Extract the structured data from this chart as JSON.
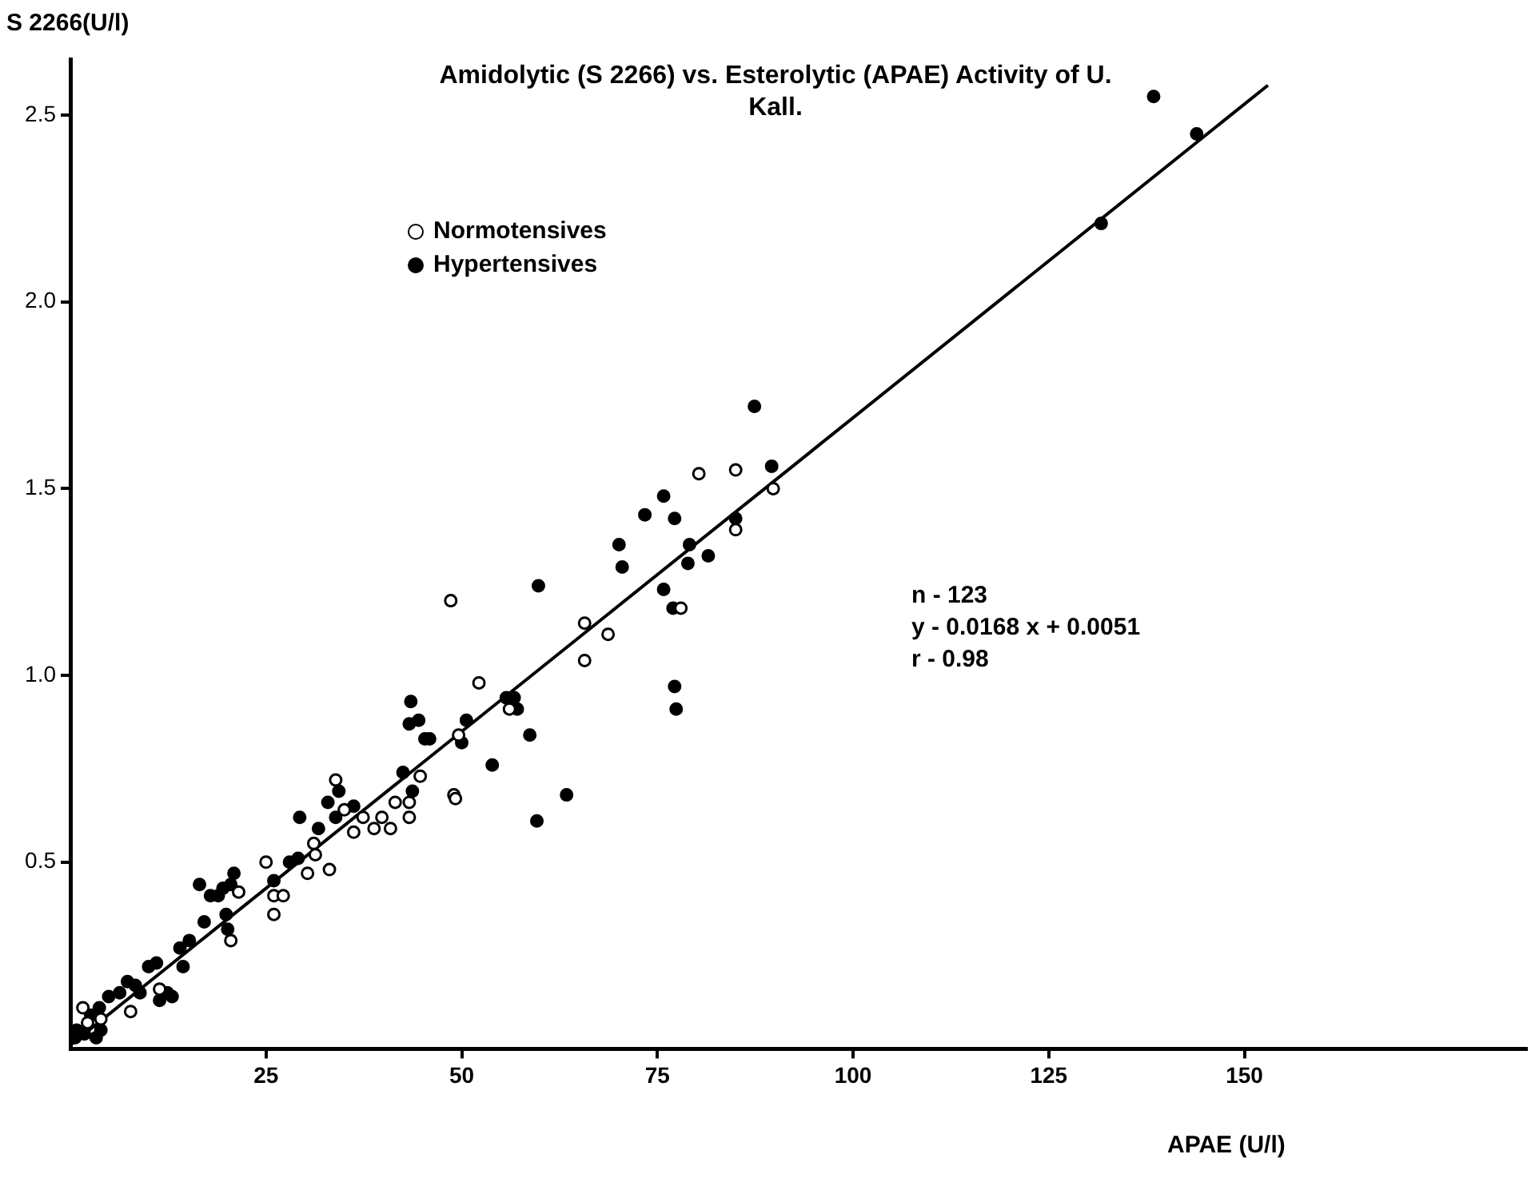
{
  "chart_data": {
    "type": "scatter",
    "title": "Amidolytic (S 2266) vs. Esterolytic (APAE) Activity of U. Kall.",
    "xlabel": "APAE (U/l)",
    "ylabel": "S 2266(U/l)",
    "xlim": [
      0,
      186
    ],
    "ylim": [
      0,
      2.65
    ],
    "xticks": [
      25,
      50,
      75,
      100,
      125,
      150
    ],
    "yticks": [
      0.5,
      {
        "value": 1,
        "label": "1.0"
      },
      1.5,
      {
        "value": 2,
        "label": "2.0"
      },
      2.5
    ],
    "legend": "top left",
    "annotations": [
      "n - 123",
      "y - 0.0168 x + 0.0051",
      "r - 0.98"
    ],
    "series": [
      {
        "name": "Normotensives",
        "color": "#ffffff",
        "x": [
          78.0,
          80.3,
          85.0,
          89.8,
          85.0,
          68.7,
          48.6,
          65.7,
          65.7,
          52.2,
          56.1,
          49.6,
          49.0,
          33.9,
          35.0,
          37.4,
          36.2,
          39.8,
          38.8,
          40.9,
          41.5,
          43.3,
          43.3,
          44.7,
          49.2,
          31.1,
          31.3,
          25.0,
          30.3,
          33.1,
          26.0,
          27.2,
          26.0,
          21.5,
          20.5,
          11.4,
          7.7,
          1.6,
          3.9,
          2.2
        ],
        "values": [
          1.18,
          1.54,
          1.55,
          1.5,
          1.39,
          1.11,
          1.2,
          1.14,
          1.04,
          0.98,
          0.91,
          0.84,
          0.68,
          0.72,
          0.64,
          0.62,
          0.58,
          0.62,
          0.59,
          0.59,
          0.66,
          0.66,
          0.62,
          0.73,
          0.67,
          0.55,
          0.52,
          0.5,
          0.47,
          0.48,
          0.41,
          0.41,
          0.36,
          0.42,
          0.29,
          0.16,
          0.1,
          0.11,
          0.08,
          0.07
        ]
      },
      {
        "name": "Hypertensives",
        "color": "#000000",
        "x": [
          138.4,
          131.7,
          143.9,
          87.4,
          89.6,
          75.8,
          73.4,
          77.2,
          70.1,
          70.5,
          79.1,
          78.9,
          81.5,
          75.8,
          77.0,
          85.0,
          77.2,
          77.4,
          59.8,
          55.7,
          56.7,
          57.1,
          50.6,
          45.9,
          50.0,
          58.7,
          53.9,
          63.4,
          59.6,
          45.3,
          34.3,
          32.9,
          36.2,
          29.3,
          33.9,
          42.5,
          43.7,
          31.7,
          29.1,
          28.0,
          26.0,
          20.9,
          20.5,
          19.9,
          43.5,
          43.3,
          44.5,
          16.5,
          17.9,
          18.9,
          19.5,
          17.1,
          20.1,
          15.2,
          14.0,
          10.0,
          11.0,
          14.4,
          7.3,
          8.3,
          12.4,
          11.4,
          13.0,
          6.3,
          8.9,
          4.9,
          3.7,
          2.6,
          0.8,
          1.8,
          3.3,
          0.6,
          3.9
        ],
        "values": [
          2.55,
          2.21,
          2.45,
          1.72,
          1.56,
          1.48,
          1.43,
          1.42,
          1.35,
          1.29,
          1.35,
          1.3,
          1.32,
          1.23,
          1.18,
          1.42,
          0.97,
          0.91,
          1.24,
          0.94,
          0.94,
          0.91,
          0.88,
          0.83,
          0.82,
          0.84,
          0.76,
          0.68,
          0.61,
          0.83,
          0.69,
          0.66,
          0.65,
          0.62,
          0.62,
          0.74,
          0.69,
          0.59,
          0.51,
          0.5,
          0.45,
          0.47,
          0.44,
          0.36,
          0.93,
          0.87,
          0.88,
          0.44,
          0.41,
          0.41,
          0.43,
          0.34,
          0.32,
          0.29,
          0.27,
          0.22,
          0.23,
          0.22,
          0.18,
          0.17,
          0.15,
          0.13,
          0.14,
          0.15,
          0.15,
          0.14,
          0.11,
          0.09,
          0.05,
          0.04,
          0.03,
          0.03,
          0.05
        ]
      },
      {
        "type": "line",
        "color": "#000000",
        "x": [
          0,
          153
        ],
        "values": [
          0.01,
          2.58
        ]
      }
    ]
  }
}
